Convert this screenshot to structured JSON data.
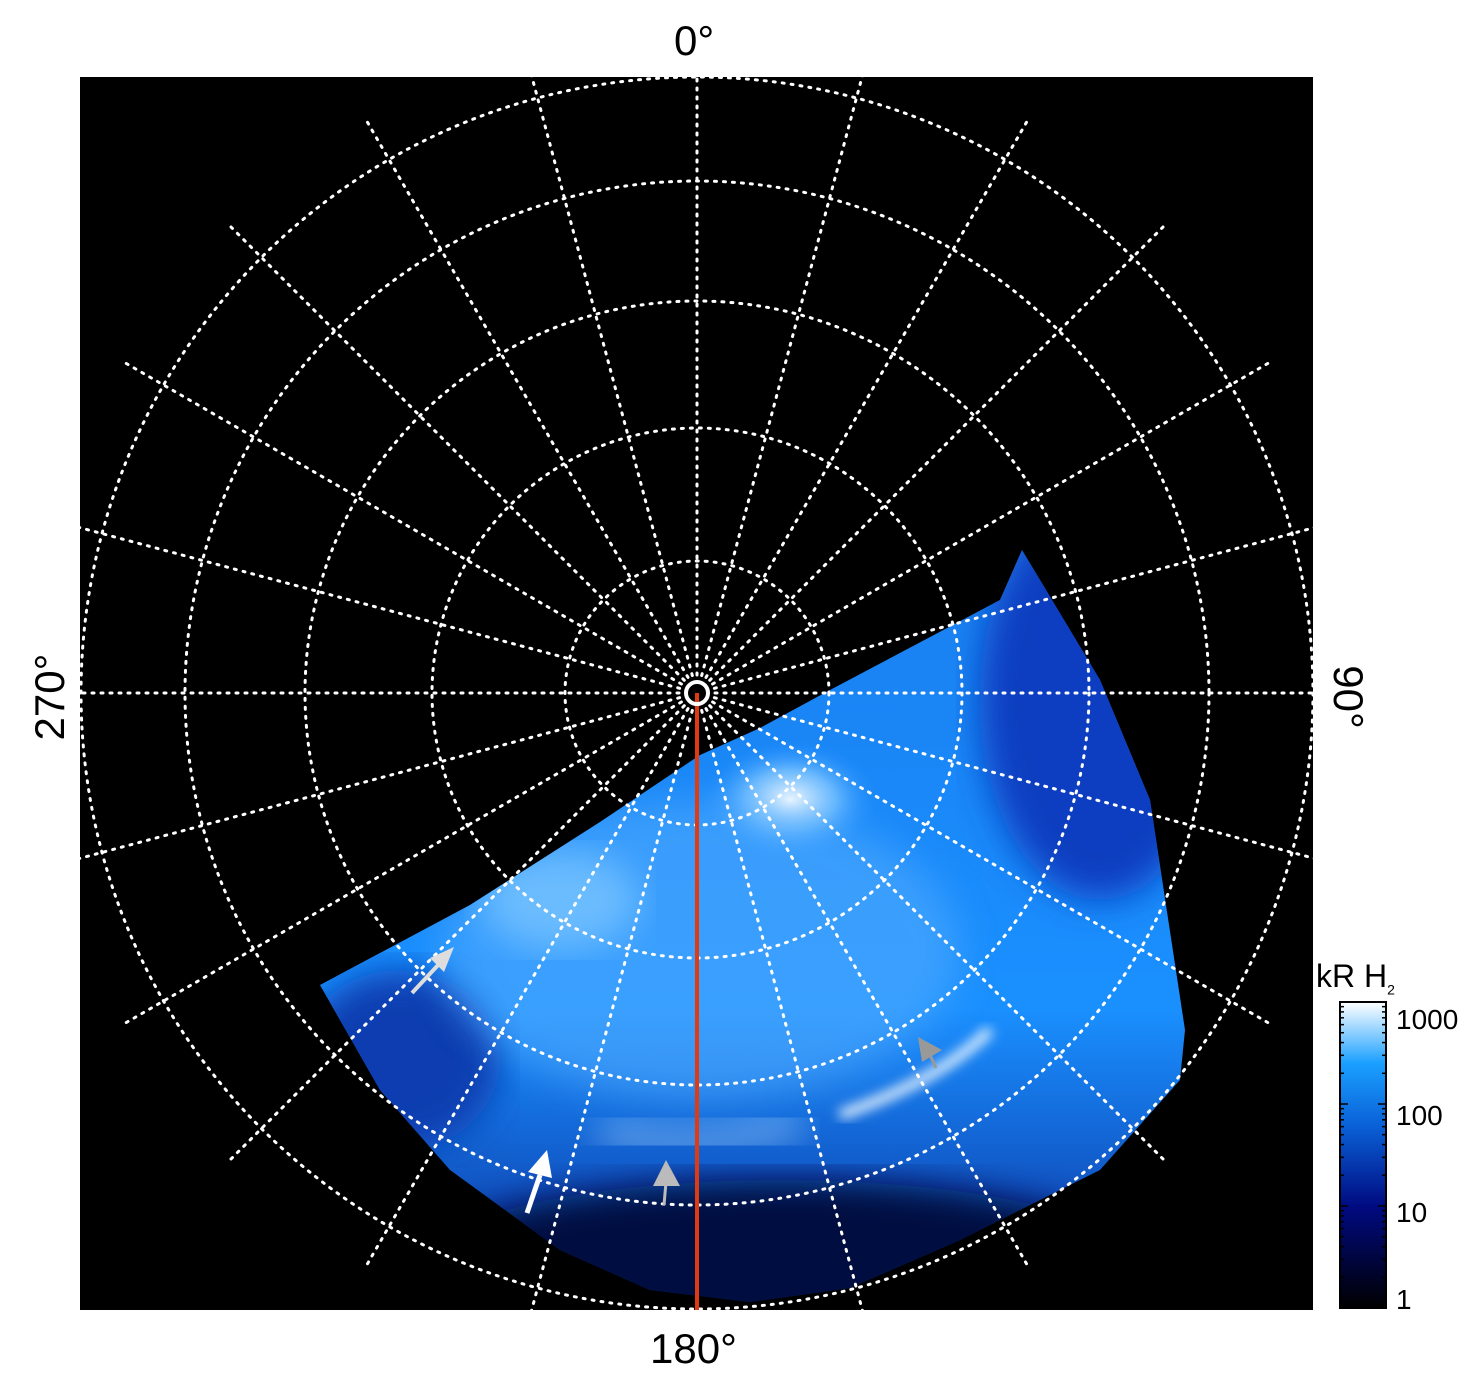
{
  "chart_data": {
    "type": "heatmap",
    "projection": "polar",
    "angle_labels": {
      "top": "0°",
      "right": "90°",
      "bottom": "180°",
      "left": "270°"
    },
    "angular_grid_step_deg": 15,
    "grid": true,
    "colorbar": {
      "title": "kR H",
      "title_subscript": "2",
      "scale": "log",
      "range": [
        1,
        1000
      ],
      "ticks": [
        "1000",
        "100",
        "10",
        "1"
      ],
      "colors": [
        "#000000",
        "#000a80",
        "#0a62d8",
        "#1aa0ff",
        "#ffffff"
      ]
    },
    "reference_line_color": "#e03a10",
    "background": "#000000"
  }
}
